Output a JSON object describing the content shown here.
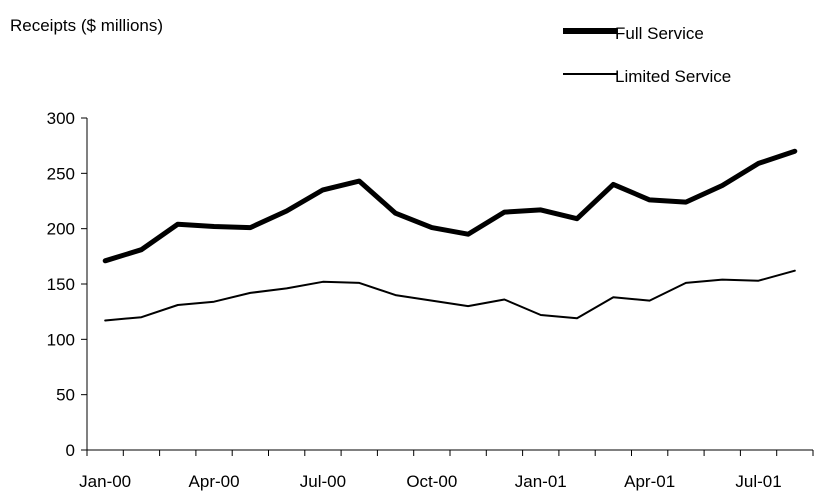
{
  "chart_data": {
    "type": "line",
    "ylabel": "Receipts ($ millions)",
    "xlabel": "",
    "ylim": [
      0,
      300
    ],
    "yticks": [
      0,
      50,
      100,
      150,
      200,
      250,
      300
    ],
    "x": [
      "Jan-00",
      "Feb-00",
      "Mar-00",
      "Apr-00",
      "May-00",
      "Jun-00",
      "Jul-00",
      "Aug-00",
      "Sep-00",
      "Oct-00",
      "Nov-00",
      "Dec-00",
      "Jan-01",
      "Feb-01",
      "Mar-01",
      "Apr-01",
      "May-01",
      "Jun-01",
      "Jul-01",
      "Aug-01"
    ],
    "xtick_labels": [
      "Jan-00",
      "Apr-00",
      "Jul-00",
      "Oct-00",
      "Jan-01",
      "Apr-01",
      "Jul-01"
    ],
    "series": [
      {
        "name": "Full Service",
        "line_weight": "thick",
        "values": [
          171,
          181,
          204,
          202,
          201,
          216,
          235,
          243,
          214,
          201,
          195,
          215,
          217,
          209,
          240,
          226,
          224,
          239,
          259,
          270
        ]
      },
      {
        "name": "Limited Service",
        "line_weight": "thin",
        "values": [
          117,
          120,
          131,
          134,
          142,
          146,
          152,
          151,
          140,
          135,
          130,
          136,
          122,
          119,
          138,
          135,
          151,
          154,
          153,
          162
        ]
      }
    ],
    "legend": "top-right",
    "grid": false,
    "line_color": "#000000"
  }
}
